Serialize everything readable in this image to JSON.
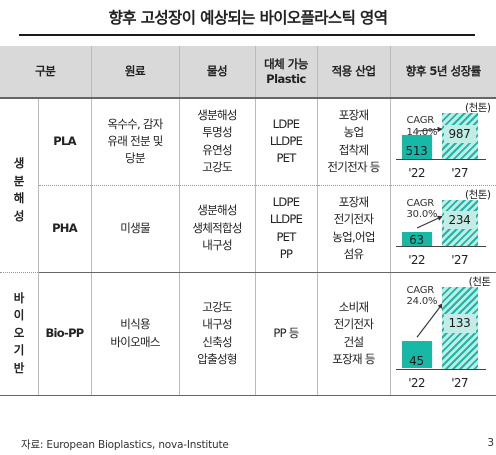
{
  "title": "향후 고성장이 예상되는 바이오플라스틱 영역",
  "headers": {
    "category": "구분",
    "material": "원료",
    "property": "물성",
    "substitute_line1": "대체 가능",
    "substitute_line2": "Plastic",
    "application": "적용 산업",
    "growth": "향후 5년 성장률"
  },
  "groups": {
    "biodegradable": [
      "생",
      "분",
      "해",
      "성"
    ],
    "bio_based": [
      "바",
      "이",
      "오",
      "기",
      "반"
    ]
  },
  "rows": [
    {
      "name": "PLA",
      "material": [
        "옥수수, 감자",
        "유래 전분 및",
        "당분"
      ],
      "property": [
        "생분해성",
        "투명성",
        "유연성",
        "고강도"
      ],
      "substitute": [
        "LDPE",
        "LLDPE",
        "PET"
      ],
      "application": [
        "포장재",
        "농업",
        "접착제",
        "전기전자 등"
      ],
      "unit": "(천톤)",
      "cagr_label": "CAGR",
      "cagr": "14.0%",
      "years": [
        "'22",
        "'27"
      ],
      "values": [
        513,
        987
      ]
    },
    {
      "name": "PHA",
      "material": [
        "미생물"
      ],
      "property": [
        "생분해성",
        "생체적합성",
        "내구성"
      ],
      "substitute": [
        "LDPE",
        "LLDPE",
        "PET",
        "PP"
      ],
      "application": [
        "포장재",
        "전기전자",
        "농업,어업",
        "섬유"
      ],
      "unit": "(천톤)",
      "cagr_label": "CAGR",
      "cagr": "30.0%",
      "years": [
        "'22",
        "'27"
      ],
      "values": [
        63,
        234
      ]
    },
    {
      "name": "Bio-PP",
      "material": [
        "비식용",
        "바이오매스"
      ],
      "property": [
        "고강도",
        "내구성",
        "신축성",
        "압출성형"
      ],
      "substitute": [
        "PP 등"
      ],
      "application": [
        "소비재",
        "전기전자",
        "건설",
        "포장재 등"
      ],
      "unit": "(천톤",
      "cagr_label": "CAGR",
      "cagr": "24.0%",
      "years": [
        "'22",
        "'27"
      ],
      "values": [
        45,
        133
      ]
    }
  ],
  "colors": {
    "header_bg": "#d9d9d9",
    "bar_2022": "#17b8a6",
    "bar_2027_hatch": "#17b8a6",
    "bar_2027_bg": "#c2ece6"
  },
  "chart_data": [
    {
      "type": "bar",
      "categories": [
        "'22",
        "'27"
      ],
      "values": [
        513,
        987
      ],
      "annotation": "CAGR 14.0%",
      "unit": "(천톤)"
    },
    {
      "type": "bar",
      "categories": [
        "'22",
        "'27"
      ],
      "values": [
        63,
        234
      ],
      "annotation": "CAGR 30.0%",
      "unit": "(천톤)"
    },
    {
      "type": "bar",
      "categories": [
        "'22",
        "'27"
      ],
      "values": [
        45,
        133
      ],
      "annotation": "CAGR 24.0%",
      "unit": "(천톤"
    }
  ],
  "source": "자료: European Bioplastics, nova-Institute",
  "page_number": "3"
}
